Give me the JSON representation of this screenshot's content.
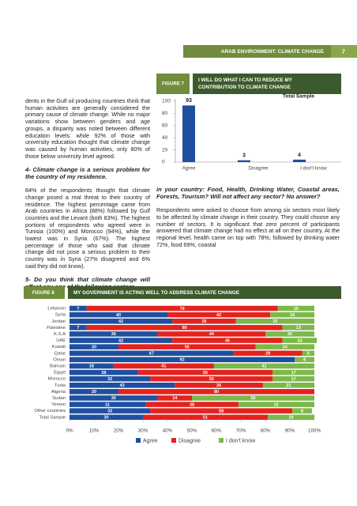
{
  "header": {
    "title": "ARAB ENVIRONMENT: CLIMATE CHANGE",
    "page": "7"
  },
  "text": {
    "left": [
      {
        "kind": "p",
        "text": "dents in the Gulf oil producing countries think that human activities are generally considered the primary cause of climate change. While no major variations show between genders and age groups, a disparity was noted between different education levels: while 92% of those with university education thought that climate change was caused by human activities, only 80% of those below university level agreed."
      },
      {
        "kind": "h",
        "text": "4- Climate change is a serious problem for the country of my residence."
      },
      {
        "kind": "p",
        "text": "84% of the respondents thought that climate change posed a real threat to their country of residence. The highest percentage came from Arab countries in Africa (88%) followed by Gulf countries and the Levant (both 83%). The highest portions of respondents who agreed were in Tunisia (100%) and Morocco (94%), while the lowest was in Syria (67%). The highest percentage of those who said that climate change did not pose a serious problem to their country was in Syria (27% disagreed and 6% said they did not know)."
      },
      {
        "kind": "h",
        "text": "5- Do you think that climate change will affect any one of the following sectors"
      }
    ],
    "right": [
      {
        "kind": "h",
        "text": "in your country: Food, Health, Drinking Water, Coastal areas, Forests, Tourism? Will not affect any sector? No answer?"
      },
      {
        "kind": "p",
        "text": "Respondents were asked to choose from among six sectors most likely to be affected by climate change in their country. They could choose any number of sectors. It is significant that zero percent of participants answered that climate change had no effect at all on their country. At the regional level, health came on top with 78%, followed by drinking water 72%, food 69%, coastal"
      }
    ]
  },
  "chart_data": [
    {
      "type": "bar",
      "figure_label": "FIGURE 7",
      "title": "I WILL DO WHAT I CAN TO REDUCE MY CONTRIBUTION TO CLIMATE CHANGE",
      "subtitle": "Total Sample",
      "categories": [
        "Agree",
        "Disagree",
        "I don't know"
      ],
      "values": [
        93,
        3,
        4
      ],
      "color": "#1f4f9f",
      "ylim": [
        0,
        100
      ],
      "yticks": [
        0,
        20,
        40,
        60,
        80,
        100
      ]
    },
    {
      "type": "stacked_barh",
      "figure_label": "FIGURE 8",
      "title": "MY GOVERNMENT IS ACTING WELL TO ADDRESS CLIMATE CHANGE",
      "categories": [
        "Lebanon",
        "Syria",
        "Jordan",
        "Palestine",
        "K.S.A",
        "UAE",
        "Kuwait",
        "Qatar",
        "Oman",
        "Bahrain",
        "Egypt",
        "Morocco",
        "Tunis",
        "Algeria",
        "Sudan",
        "Yemen",
        "Other countries",
        "Total Sample"
      ],
      "series": [
        {
          "name": "Agree",
          "color": "#1f4f9f",
          "values": [
            7,
            40,
            42,
            7,
            36,
            42,
            20,
            67,
            92,
            18,
            28,
            33,
            43,
            20,
            36,
            31,
            33,
            30
          ]
        },
        {
          "name": "Disagree",
          "color": "#e3231f",
          "values": [
            78,
            42,
            26,
            80,
            44,
            45,
            56,
            28,
            0,
            41,
            55,
            50,
            36,
            80,
            14,
            38,
            58,
            51
          ]
        },
        {
          "name": "I don't know",
          "color": "#7cb84a",
          "values": [
            15,
            18,
            32,
            13,
            20,
            14,
            24,
            5,
            8,
            41,
            17,
            17,
            21,
            0,
            50,
            31,
            8,
            19
          ]
        }
      ],
      "xlim": [
        0,
        100
      ],
      "xticks": [
        {
          "value": 0,
          "label": "0%"
        },
        {
          "value": 10,
          "label": "10%"
        },
        {
          "value": 20,
          "label": "20%"
        },
        {
          "value": 30,
          "label": "30%"
        },
        {
          "value": 40,
          "label": "40%"
        },
        {
          "value": 50,
          "label": "50%"
        },
        {
          "value": 60,
          "label": "60%"
        },
        {
          "value": 70,
          "label": "70%"
        },
        {
          "value": 80,
          "label": "80%"
        },
        {
          "value": 90,
          "label": "90%"
        },
        {
          "value": 100,
          "label": "100%"
        }
      ]
    }
  ]
}
